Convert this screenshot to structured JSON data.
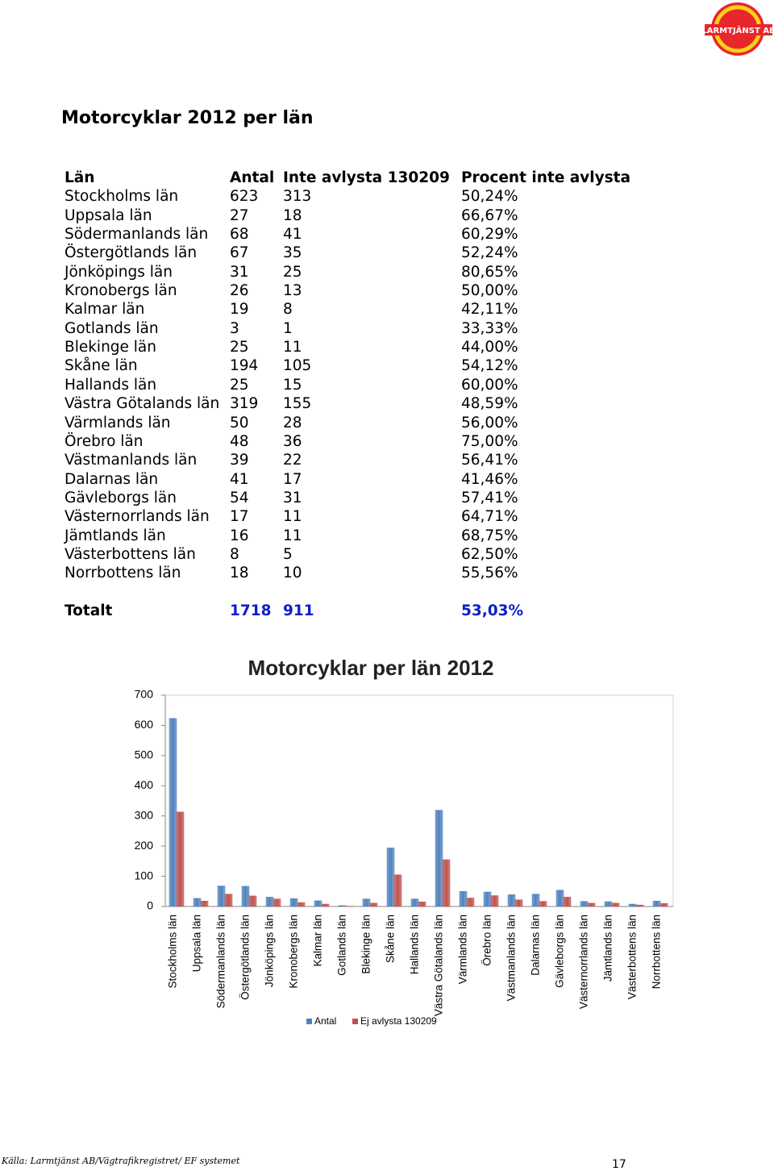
{
  "logo": "LARMTJÄNST AB",
  "title": "Motorcyklar 2012 per län",
  "table": {
    "header": [
      "Län",
      "Antal",
      "Inte avlysta 130209",
      "Procent inte avlysta"
    ],
    "rows": [
      [
        "Stockholms län",
        "623",
        "313",
        "50,24%"
      ],
      [
        "Uppsala län",
        "27",
        "18",
        "66,67%"
      ],
      [
        "Södermanlands län",
        "68",
        "41",
        "60,29%"
      ],
      [
        "Östergötlands län",
        "67",
        "35",
        "52,24%"
      ],
      [
        "Jönköpings län",
        "31",
        "25",
        "80,65%"
      ],
      [
        "Kronobergs län",
        "26",
        "13",
        "50,00%"
      ],
      [
        "Kalmar län",
        "19",
        "8",
        "42,11%"
      ],
      [
        "Gotlands län",
        "3",
        "1",
        "33,33%"
      ],
      [
        "Blekinge län",
        "25",
        "11",
        "44,00%"
      ],
      [
        "Skåne län",
        "194",
        "105",
        "54,12%"
      ],
      [
        "Hallands län",
        "25",
        "15",
        "60,00%"
      ],
      [
        "Västra Götalands län",
        "319",
        "155",
        "48,59%"
      ],
      [
        "Värmlands län",
        "50",
        "28",
        "56,00%"
      ],
      [
        "Örebro län",
        "48",
        "36",
        "75,00%"
      ],
      [
        "Västmanlands län",
        "39",
        "22",
        "56,41%"
      ],
      [
        "Dalarnas län",
        "41",
        "17",
        "41,46%"
      ],
      [
        "Gävleborgs län",
        "54",
        "31",
        "57,41%"
      ],
      [
        "Västernorrlands län",
        "17",
        "11",
        "64,71%"
      ],
      [
        "Jämtlands län",
        "16",
        "11",
        "68,75%"
      ],
      [
        "Västerbottens län",
        "8",
        "5",
        "62,50%"
      ],
      [
        "Norrbottens län",
        "18",
        "10",
        "55,56%"
      ]
    ],
    "total": [
      "Totalt",
      "1718",
      "911",
      "53,03%"
    ]
  },
  "chart_data": {
    "type": "bar",
    "title": "Motorcyklar per län 2012",
    "categories": [
      "Stockholms län",
      "Uppsala län",
      "Södermanlands län",
      "Östergötlands län",
      "Jönköpings län",
      "Kronobergs län",
      "Kalmar län",
      "Gotlands län",
      "Blekinge län",
      "Skåne län",
      "Hallands län",
      "Västra Götalands län",
      "Värmlands län",
      "Örebro län",
      "Västmanlands län",
      "Dalarnas län",
      "Gävleborgs län",
      "Västernorrlands län",
      "Jämtlands län",
      "Västerbottens län",
      "Norrbottens län"
    ],
    "series": [
      {
        "name": "Antal",
        "color": "#4f81bd",
        "values": [
          623,
          27,
          68,
          67,
          31,
          26,
          19,
          3,
          25,
          194,
          25,
          319,
          50,
          48,
          39,
          41,
          54,
          17,
          16,
          8,
          18
        ]
      },
      {
        "name": "Ej avlysta 130209",
        "color": "#c0504d",
        "values": [
          313,
          18,
          41,
          35,
          25,
          13,
          8,
          1,
          11,
          105,
          15,
          155,
          28,
          36,
          22,
          17,
          31,
          11,
          11,
          5,
          10
        ]
      }
    ],
    "ylim": [
      0,
      700
    ],
    "yticks": [
      0,
      100,
      200,
      300,
      400,
      500,
      600,
      700
    ],
    "grid": false,
    "legend": "bottom"
  },
  "footer": "Källa: Larmtjänst AB/Vägtrafikregistret/ EF systemet",
  "page_number": "17"
}
